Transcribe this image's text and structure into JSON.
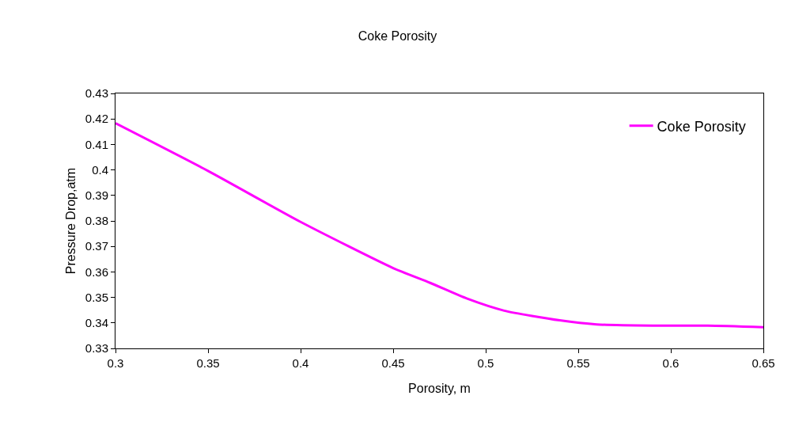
{
  "chart_data": {
    "type": "line",
    "title": "Coke Porosity",
    "xlabel": "Porosity, m",
    "ylabel": "Pressure Drop,atm",
    "x": [
      0.3,
      0.35,
      0.4,
      0.45,
      0.47,
      0.49,
      0.51,
      0.54,
      0.56,
      0.59,
      0.62,
      0.65
    ],
    "series": [
      {
        "name": "Coke Porosity",
        "color": "#ff00ff",
        "values": [
          0.4183,
          0.3996,
          0.3796,
          0.3615,
          0.3557,
          0.3495,
          0.3448,
          0.341,
          0.3394,
          0.3389,
          0.3389,
          0.3383
        ]
      }
    ],
    "xlim": [
      0.3,
      0.65
    ],
    "xticks": [
      0.3,
      0.35,
      0.4,
      0.45,
      0.5,
      0.55,
      0.6,
      0.65
    ],
    "ylim": [
      0.33,
      0.43
    ],
    "yticks": [
      0.33,
      0.34,
      0.35,
      0.36,
      0.37,
      0.38,
      0.39,
      0.4,
      0.41,
      0.42,
      0.43
    ],
    "grid": false,
    "legend": "top right",
    "marker": "none",
    "line_style": "solid"
  }
}
